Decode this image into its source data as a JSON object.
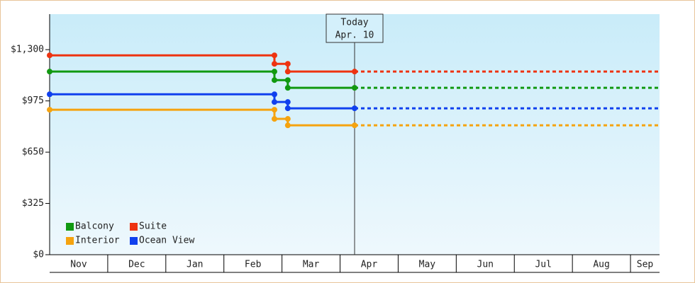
{
  "chart_data": {
    "type": "step-line",
    "categories": [
      "Nov",
      "Dec",
      "Jan",
      "Feb",
      "Mar",
      "Apr",
      "May",
      "Jun",
      "Jul",
      "Aug",
      "Sep"
    ],
    "x": [
      0,
      3.87,
      3.87,
      4.1,
      4.1,
      5.25
    ],
    "xlim": [
      0,
      10.5
    ],
    "series": [
      {
        "name": "Balcony",
        "color": "#119911",
        "values": [
          1161,
          1161,
          1107,
          1107,
          1058,
          1058
        ]
      },
      {
        "name": "Suite",
        "color": "#ee3311",
        "values": [
          1264,
          1264,
          1210,
          1210,
          1161,
          1161
        ]
      },
      {
        "name": "Interior",
        "color": "#f5a30f",
        "values": [
          919,
          919,
          861,
          861,
          820,
          820
        ]
      },
      {
        "name": "Ocean View",
        "color": "#1040ee",
        "values": [
          1017,
          1017,
          968,
          968,
          928,
          928
        ]
      }
    ],
    "ylim": [
      0,
      1525
    ],
    "yticks": [
      {
        "value": 0,
        "label": "$0"
      },
      {
        "value": 325,
        "label": "$325"
      },
      {
        "value": 650,
        "label": "$650"
      },
      {
        "value": 975,
        "label": "$975"
      },
      {
        "value": 1300,
        "label": "$1,300"
      }
    ],
    "today": {
      "x": 5.25,
      "label": [
        "Today",
        "Apr. 10"
      ]
    },
    "legend": "bottom-left"
  }
}
